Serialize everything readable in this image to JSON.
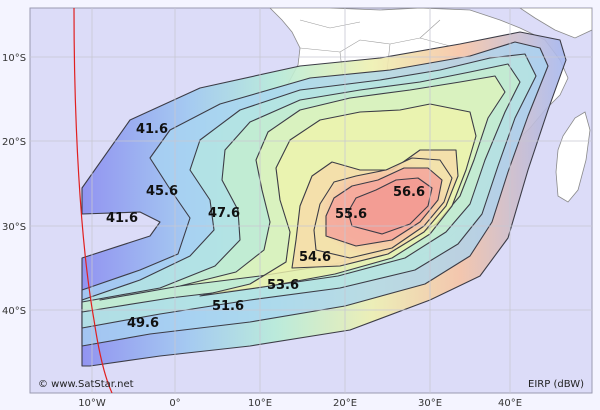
{
  "map": {
    "copyright": "© www.SatStar.net",
    "unit_label": "EIRP (dBW)",
    "colors": {
      "frame_bg": "#f4f4ff",
      "plot_bg": "#dcdcf8",
      "land": "#ffffff",
      "grid": "#c7c7d2",
      "horizon": "#e02020",
      "contour_stroke": "#3c3c46"
    },
    "lat_labels": [
      "10°S",
      "20°S",
      "30°S",
      "40°S"
    ],
    "lon_labels": [
      "10°W",
      "0°",
      "10°E",
      "20°E",
      "30°E",
      "40°E"
    ],
    "contour_labels": [
      {
        "id": "c1",
        "text": "41.6"
      },
      {
        "id": "c2",
        "text": "45.6"
      },
      {
        "id": "c3",
        "text": "41.6"
      },
      {
        "id": "c4",
        "text": "47.6"
      },
      {
        "id": "c5",
        "text": "55.6"
      },
      {
        "id": "c6",
        "text": "56.6"
      },
      {
        "id": "c7",
        "text": "54.6"
      },
      {
        "id": "c8",
        "text": "53.6"
      },
      {
        "id": "c9",
        "text": "51.6"
      },
      {
        "id": "c10",
        "text": "49.6"
      }
    ]
  }
}
